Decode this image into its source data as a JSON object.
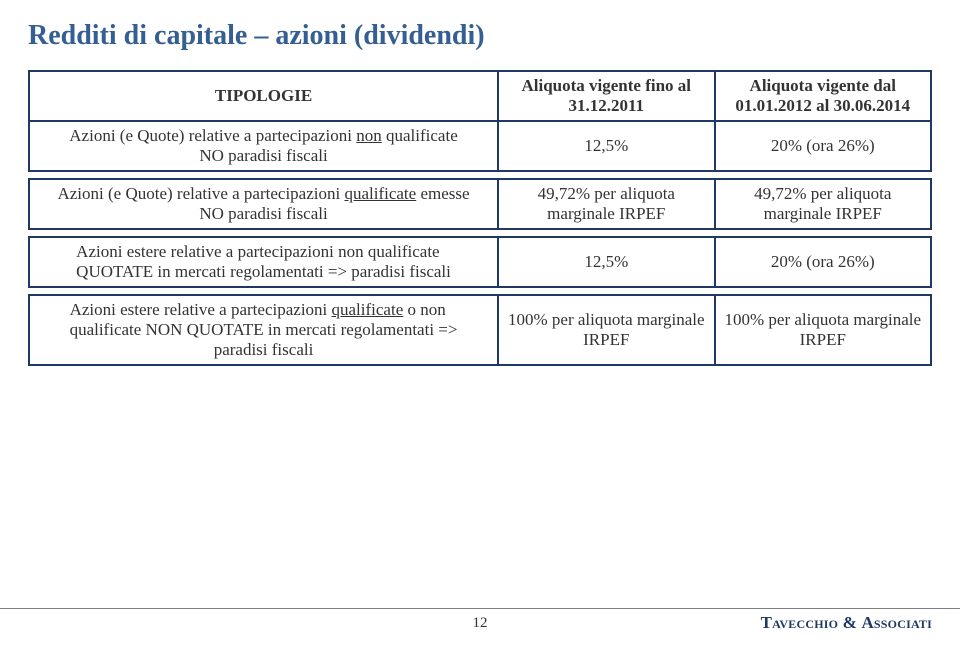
{
  "title": "Redditi di capitale – azioni (dividendi)",
  "table": {
    "header": {
      "tipologie": "TIPOLOGIE",
      "colA": "Aliquota vigente fino al 31.12.2011",
      "colB": "Aliquota vigente dal 01.01.2012 al 30.06.2014"
    },
    "rows": [
      {
        "tip_l1": "Azioni (e Quote) relative a partecipazioni <u>non</u> qualificate",
        "tip_l2": "NO paradisi fiscali",
        "a": "12,5%",
        "b": "20% (ora 26%)"
      },
      {
        "tip_l1": "Azioni (e Quote) relative a partecipazioni <u>qualificate</u> emesse",
        "tip_l2": "NO paradisi fiscali",
        "a": "49,72% per aliquota marginale IRPEF",
        "b": "49,72% per aliquota marginale IRPEF"
      },
      {
        "tip_l1": "Azioni estere relative a partecipazioni non qualificate",
        "tip_l2": "QUOTATE in mercati regolamentati => paradisi fiscali",
        "a": "12,5%",
        "b": "20% (ora 26%)"
      },
      {
        "tip_l1": "Azioni estere relative a partecipazioni <u>qualificate</u>  o non",
        "tip_l2": "qualificate NON QUOTATE in mercati regolamentati =>",
        "tip_l3": "paradisi fiscali",
        "a": "100% per aliquota marginale IRPEF",
        "b": "100% per aliquota marginale IRPEF"
      }
    ]
  },
  "footer": {
    "page": "12",
    "brand_left": "Tavecchio",
    "brand_amp": " & ",
    "brand_right": "Associati"
  },
  "colors": {
    "heading": "#365f91",
    "border": "#1f3864",
    "brand": "#1f3864"
  }
}
